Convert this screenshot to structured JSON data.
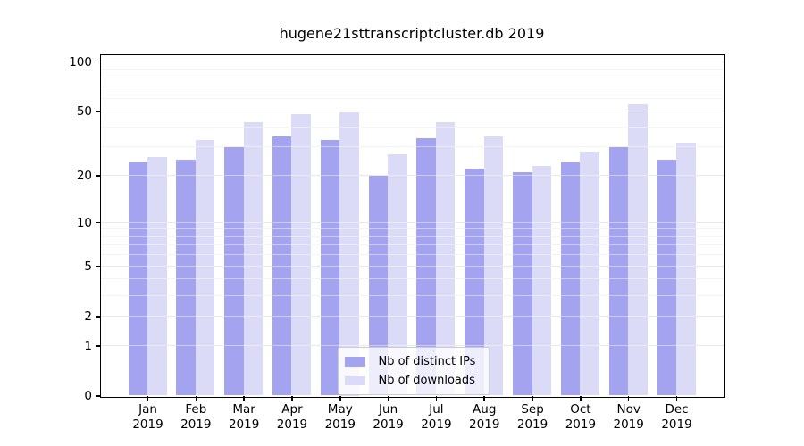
{
  "chart_data": {
    "type": "bar",
    "title": "hugene21sttranscriptcluster.db 2019",
    "categories": [
      "Jan 2019",
      "Feb 2019",
      "Mar 2019",
      "Apr 2019",
      "May 2019",
      "Jun 2019",
      "Jul 2019",
      "Aug 2019",
      "Sep 2019",
      "Oct 2019",
      "Nov 2019",
      "Dec 2019"
    ],
    "series": [
      {
        "name": "Nb of distinct IPs",
        "color": "#a3a3f0",
        "values": [
          24,
          25,
          30,
          35,
          33,
          20,
          34,
          22,
          21,
          24,
          30,
          25
        ]
      },
      {
        "name": "Nb of downloads",
        "color": "#dbdbf8",
        "values": [
          26,
          33,
          43,
          48,
          49,
          27,
          43,
          35,
          23,
          28,
          55,
          32
        ]
      }
    ],
    "xlabel": "",
    "ylabel": "",
    "yscale": "log1p",
    "ylim": [
      0,
      110
    ],
    "yticks": [
      0,
      1,
      2,
      5,
      10,
      20,
      50,
      100
    ],
    "ytick_labels": [
      "0",
      "1",
      "2",
      "5",
      "10",
      "20",
      "50",
      "100"
    ],
    "minor_yticks": [
      3,
      4,
      6,
      7,
      8,
      9,
      30,
      40,
      60,
      70,
      80,
      90
    ],
    "grid": true,
    "legend_position": "lower center",
    "axis_color": "#000000",
    "grid_major_color": "rgba(185,185,185,0.55)",
    "grid_minor_color": "rgba(205,205,205,0.45)"
  }
}
